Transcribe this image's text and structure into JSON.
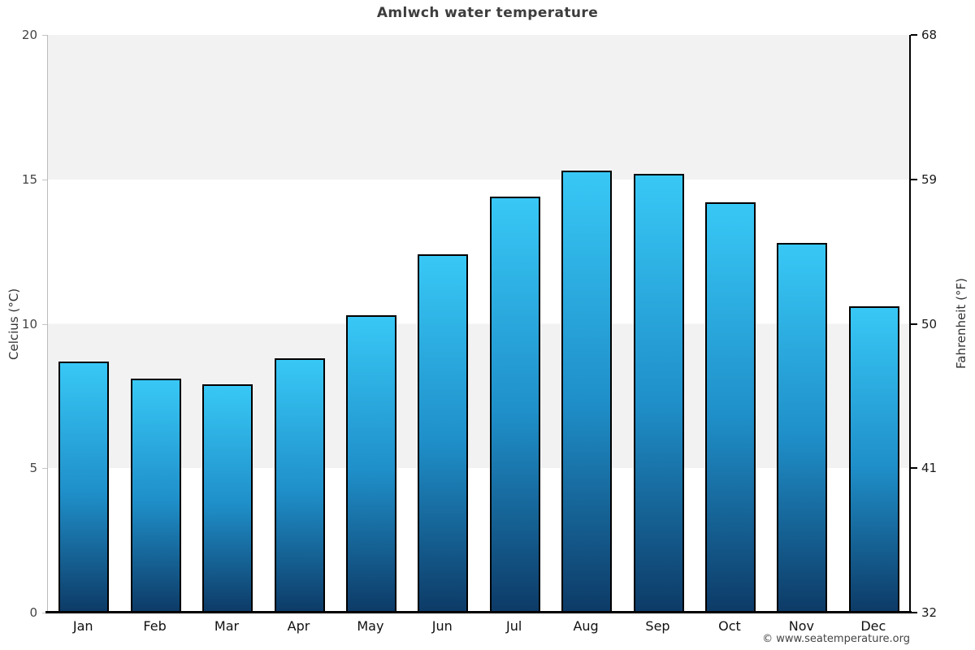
{
  "chart_data": {
    "type": "bar",
    "title": "Amlwch water temperature",
    "ylabel_left": "Celcius (°C)",
    "ylabel_right": "Fahrenheit (°F)",
    "categories": [
      "Jan",
      "Feb",
      "Mar",
      "Apr",
      "May",
      "Jun",
      "Jul",
      "Aug",
      "Sep",
      "Oct",
      "Nov",
      "Dec"
    ],
    "values": [
      8.7,
      8.1,
      7.9,
      8.8,
      10.3,
      12.4,
      14.4,
      15.3,
      15.2,
      14.2,
      12.8,
      10.6
    ],
    "unit": "°C",
    "ylim_celsius": [
      0,
      20
    ],
    "ylim_fahrenheit": [
      32,
      68
    ],
    "celsius_ticks": [
      "20",
      "15",
      "10",
      "5",
      "0"
    ],
    "fahrenheit_ticks": [
      "68",
      "59",
      "50",
      "41",
      "32"
    ],
    "legend_position": "none",
    "grid_bands": true,
    "band_color": "#f2f2f2",
    "bar_color_top": "#38c8f6",
    "bar_color_bottom": "#0d3a66",
    "bar_border_color": "#000000"
  },
  "footer": {
    "copyright": "© www.seatemperature.org"
  }
}
